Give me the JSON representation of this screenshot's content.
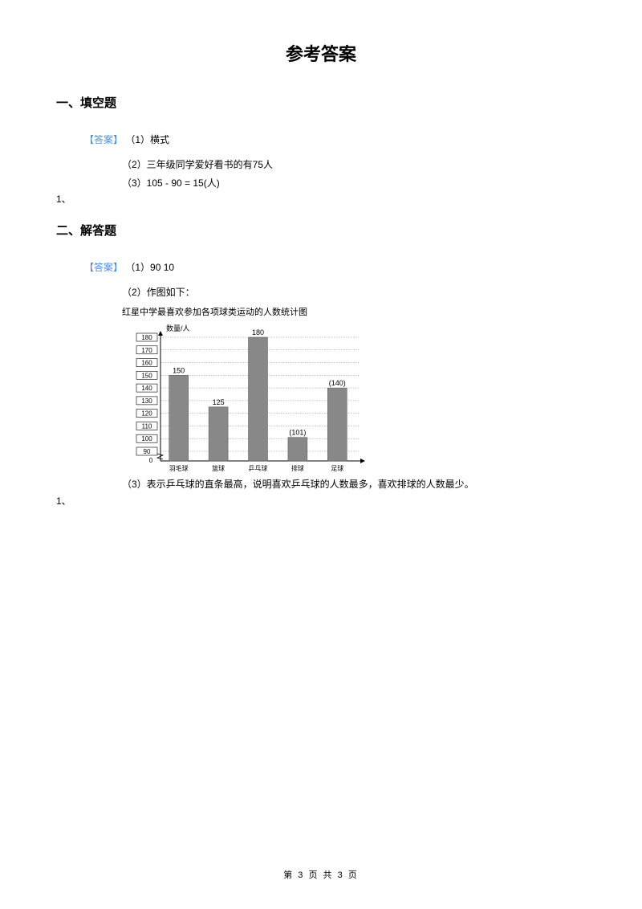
{
  "page_title": "参考答案",
  "section1": {
    "heading": "一、填空题",
    "answer_label": "【答案】",
    "line1": "（1）横式",
    "line2": "（2）三年级同学爱好看书的有75人",
    "line3": "（3）105 - 90 = 15(人)",
    "item_number": "1、"
  },
  "section2": {
    "heading": "二、解答题",
    "answer_label": "【答案】",
    "line1": "（1）90 10",
    "line2": "（2）作图如下：",
    "chart_title": "红星中学最喜欢参加各项球类运动的人数统计图",
    "line3": "（3）表示乒乓球的直条最高，说明喜欢乒乓球的人数最多，喜欢排球的人数最少。",
    "item_number": "1、"
  },
  "chart": {
    "type": "bar",
    "y_axis_label": "数量/人",
    "y_ticks": [
      "180",
      "170",
      "160",
      "150",
      "140",
      "130",
      "120",
      "110",
      "100",
      "90",
      "0"
    ],
    "categories": [
      "羽毛球",
      "篮球",
      "乒乓球",
      "排球",
      "足球"
    ],
    "values": [
      150,
      125,
      180,
      101,
      140
    ],
    "value_labels": [
      "150",
      "125",
      "180",
      "(101)",
      "(140)"
    ],
    "bar_color": "#888888",
    "background_color": "#ffffff",
    "grid_color": "#888888",
    "axis_color": "#000000",
    "text_color": "#000000",
    "y_min": 90,
    "y_max": 180,
    "y_step": 10
  },
  "footer": "第 3 页 共 3 页"
}
